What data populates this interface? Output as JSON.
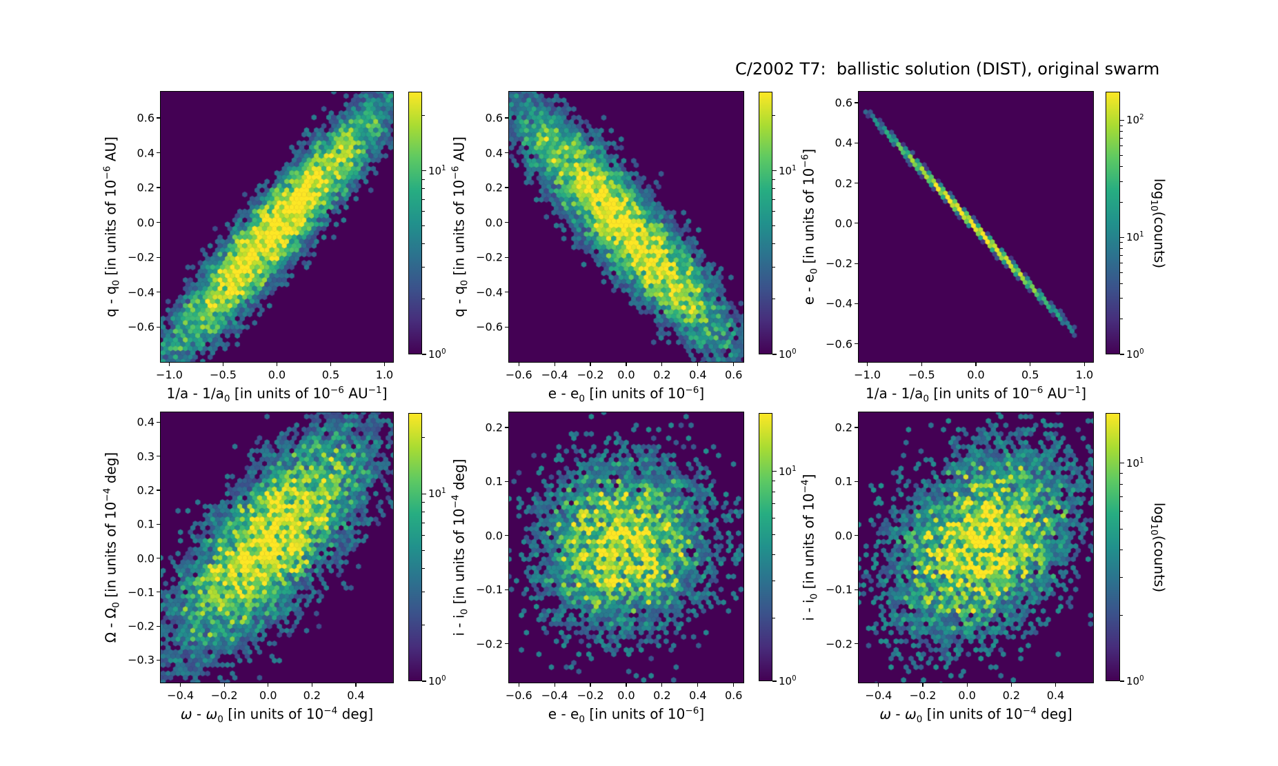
{
  "title": "C/2002 T7:  ballistic solution (DIST), original swarm",
  "colors": {
    "figure_background": "#ffffff",
    "hexbin_background": "#440154",
    "colormap": "viridis",
    "axis_color": "#000000",
    "peak_color": "#fde725"
  },
  "colorbar_label": "log<sub>10</sub>(counts)",
  "chart_data": [
    {
      "type": "hexbin",
      "position": "top-left",
      "xlabel_html": "1/a - 1/a<sub>0</sub> [in units of 10<sup>−6</sup> AU<sup>−1</sup>]",
      "ylabel_html": "q - q<sub>0</sub> [in units of 10<sup>−6</sup> AU]",
      "xlim": [
        -1.08,
        1.08
      ],
      "ylim": [
        -0.8,
        0.75
      ],
      "xticks": [
        {
          "v": -1.0,
          "label": "−1.0"
        },
        {
          "v": -0.5,
          "label": "−0.5"
        },
        {
          "v": 0.0,
          "label": "0.0"
        },
        {
          "v": 0.5,
          "label": "0.5"
        },
        {
          "v": 1.0,
          "label": "1.0"
        }
      ],
      "yticks": [
        {
          "v": 0.6,
          "label": "0.6"
        },
        {
          "v": 0.4,
          "label": "0.4"
        },
        {
          "v": 0.2,
          "label": "0.2"
        },
        {
          "v": 0.0,
          "label": "0.0"
        },
        {
          "v": -0.2,
          "label": "−0.2"
        },
        {
          "v": -0.4,
          "label": "−0.4"
        },
        {
          "v": -0.6,
          "label": "−0.6"
        }
      ],
      "colorbar": {
        "vmax": 27,
        "ticks": [
          {
            "v": 10,
            "label": "10^1"
          },
          {
            "v": 1,
            "label": "10^0"
          }
        ],
        "show_label": false
      },
      "dist": {
        "shape": "gaussian",
        "correlation": "strong positive",
        "cx": 0.5,
        "cy": 0.49,
        "theta_deg": 45,
        "su": 0.33,
        "sv": 0.058,
        "amp": 33,
        "jitter": 1.1,
        "peak_count": 33
      },
      "seed": 101,
      "gridsize": 47
    },
    {
      "type": "hexbin",
      "position": "top-middle",
      "xlabel_html": "e - e<sub>0</sub> [in units of 10<sup>−6</sup>]",
      "ylabel_html": "q - q<sub>0</sub> [in units of 10<sup>−6</sup> AU]",
      "xlim": [
        -0.655,
        0.655
      ],
      "ylim": [
        -0.8,
        0.75
      ],
      "xticks": [
        {
          "v": -0.6,
          "label": "−0.6"
        },
        {
          "v": -0.4,
          "label": "−0.4"
        },
        {
          "v": -0.2,
          "label": "−0.2"
        },
        {
          "v": 0.0,
          "label": "0.0"
        },
        {
          "v": 0.2,
          "label": "0.2"
        },
        {
          "v": 0.4,
          "label": "0.4"
        },
        {
          "v": 0.6,
          "label": "0.6"
        }
      ],
      "yticks": [
        {
          "v": 0.6,
          "label": "0.6"
        },
        {
          "v": 0.4,
          "label": "0.4"
        },
        {
          "v": 0.2,
          "label": "0.2"
        },
        {
          "v": 0.0,
          "label": "0.0"
        },
        {
          "v": -0.2,
          "label": "−0.2"
        },
        {
          "v": -0.4,
          "label": "−0.4"
        },
        {
          "v": -0.6,
          "label": "−0.6"
        }
      ],
      "colorbar": {
        "vmax": 27,
        "ticks": [
          {
            "v": 10,
            "label": "10^1"
          },
          {
            "v": 1,
            "label": "10^0"
          }
        ],
        "show_label": false
      },
      "dist": {
        "shape": "gaussian",
        "correlation": "strong negative",
        "cx": 0.49,
        "cy": 0.5,
        "theta_deg": -45,
        "su": 0.31,
        "sv": 0.068,
        "amp": 30,
        "jitter": 1.15,
        "peak_count": 30
      },
      "seed": 202,
      "gridsize": 47
    },
    {
      "type": "hexbin",
      "position": "top-right",
      "xlabel_html": "1/a - 1/a<sub>0</sub> [in units of 10<sup>−6</sup> AU<sup>−1</sup>]",
      "ylabel_html": "e - e<sub>0</sub> [in units of 10<sup>−6</sup>]",
      "xlim": [
        -1.08,
        1.08
      ],
      "ylim": [
        -0.69,
        0.655
      ],
      "xticks": [
        {
          "v": -1.0,
          "label": "−1.0"
        },
        {
          "v": -0.5,
          "label": "−0.5"
        },
        {
          "v": 0.0,
          "label": "0.0"
        },
        {
          "v": 0.5,
          "label": "0.5"
        },
        {
          "v": 1.0,
          "label": "1.0"
        }
      ],
      "yticks": [
        {
          "v": 0.6,
          "label": "0.6"
        },
        {
          "v": 0.4,
          "label": "0.4"
        },
        {
          "v": 0.2,
          "label": "0.2"
        },
        {
          "v": 0.0,
          "label": "0.0"
        },
        {
          "v": -0.2,
          "label": "−0.2"
        },
        {
          "v": -0.4,
          "label": "−0.4"
        },
        {
          "v": -0.6,
          "label": "−0.6"
        }
      ],
      "colorbar": {
        "vmax": 175,
        "ticks": [
          {
            "v": 100,
            "label": "10^2"
          },
          {
            "v": 10,
            "label": "10^1"
          },
          {
            "v": 1,
            "label": "10^0"
          }
        ],
        "show_label": true
      },
      "dist": {
        "shape": "line",
        "correlation": "perfect negative (tight linear anti-correlation, e-e0 ≈ -0.57 (1/a-1/a0))",
        "cx": 0.48,
        "cy": 0.515,
        "theta_deg": -42.8,
        "su": 0.23,
        "sv": 0.006,
        "amp": 230,
        "jitter": 0.35,
        "halflen": 0.615,
        "peak_count": 230
      },
      "seed": 303,
      "gridsize": 50
    },
    {
      "type": "hexbin",
      "position": "bottom-left",
      "xlabel_html": "<i>ω</i> - <i>ω</i><sub>0</sub> [in units of 10<sup>−4</sup> deg]",
      "ylabel_html": "Ω - Ω<sub>0</sub> [in units of 10<sup>−4</sup> deg]",
      "xlim": [
        -0.49,
        0.57
      ],
      "ylim": [
        -0.366,
        0.429
      ],
      "xticks": [
        {
          "v": -0.4,
          "label": "−0.4"
        },
        {
          "v": -0.2,
          "label": "−0.2"
        },
        {
          "v": 0.0,
          "label": "0.0"
        },
        {
          "v": 0.2,
          "label": "0.2"
        },
        {
          "v": 0.4,
          "label": "0.4"
        }
      ],
      "yticks": [
        {
          "v": 0.4,
          "label": "0.4"
        },
        {
          "v": 0.3,
          "label": "0.3"
        },
        {
          "v": 0.2,
          "label": "0.2"
        },
        {
          "v": 0.1,
          "label": "0.1"
        },
        {
          "v": 0.0,
          "label": "0.0"
        },
        {
          "v": -0.1,
          "label": "−0.1"
        },
        {
          "v": -0.2,
          "label": "−0.2"
        },
        {
          "v": -0.3,
          "label": "−0.3"
        }
      ],
      "colorbar": {
        "vmax": 27,
        "ticks": [
          {
            "v": 10,
            "label": "10^1"
          },
          {
            "v": 1,
            "label": "10^0"
          }
        ],
        "show_label": false
      },
      "dist": {
        "shape": "gaussian",
        "correlation": "positive",
        "cx": 0.47,
        "cy": 0.52,
        "theta_deg": 45,
        "su": 0.27,
        "sv": 0.105,
        "amp": 24,
        "jitter": 1.35,
        "peak_count": 24
      },
      "seed": 404,
      "gridsize": 47
    },
    {
      "type": "hexbin",
      "position": "bottom-middle",
      "xlabel_html": "e - e<sub>0</sub> [in units of 10<sup>−6</sup>]",
      "ylabel_html": "i - i<sub>0</sub> [in units of 10<sup>−4</sup> deg]",
      "xlim": [
        -0.655,
        0.655
      ],
      "ylim": [
        -0.272,
        0.228
      ],
      "xticks": [
        {
          "v": -0.6,
          "label": "−0.6"
        },
        {
          "v": -0.4,
          "label": "−0.4"
        },
        {
          "v": -0.2,
          "label": "−0.2"
        },
        {
          "v": 0.0,
          "label": "0.0"
        },
        {
          "v": 0.2,
          "label": "0.2"
        },
        {
          "v": 0.4,
          "label": "0.4"
        },
        {
          "v": 0.6,
          "label": "0.6"
        }
      ],
      "yticks": [
        {
          "v": 0.2,
          "label": "0.2"
        },
        {
          "v": 0.1,
          "label": "0.1"
        },
        {
          "v": 0.0,
          "label": "0.0"
        },
        {
          "v": -0.1,
          "label": "−0.1"
        },
        {
          "v": -0.2,
          "label": "−0.2"
        }
      ],
      "colorbar": {
        "vmax": 19,
        "ticks": [
          {
            "v": 10,
            "label": "10^1"
          },
          {
            "v": 1,
            "label": "10^0"
          }
        ],
        "show_label": false
      },
      "dist": {
        "shape": "gaussian",
        "correlation": "none (round cloud)",
        "cx": 0.49,
        "cy": 0.51,
        "theta_deg": 10,
        "su": 0.175,
        "sv": 0.155,
        "amp": 15,
        "jitter": 1.45,
        "peak_count": 15
      },
      "seed": 505,
      "gridsize": 47
    },
    {
      "type": "hexbin",
      "position": "bottom-right",
      "xlabel_html": "<i>ω</i> - <i>ω</i><sub>0</sub> [in units of 10<sup>−4</sup> deg]",
      "ylabel_html": "i - i<sub>0</sub> [in units of 10<sup>−4</sup>]",
      "xlim": [
        -0.49,
        0.57
      ],
      "ylim": [
        -0.272,
        0.228
      ],
      "xticks": [
        {
          "v": -0.4,
          "label": "−0.4"
        },
        {
          "v": -0.2,
          "label": "−0.2"
        },
        {
          "v": 0.0,
          "label": "0.0"
        },
        {
          "v": 0.2,
          "label": "0.2"
        },
        {
          "v": 0.4,
          "label": "0.4"
        }
      ],
      "yticks": [
        {
          "v": 0.2,
          "label": "0.2"
        },
        {
          "v": 0.1,
          "label": "0.1"
        },
        {
          "v": 0.0,
          "label": "0.0"
        },
        {
          "v": -0.1,
          "label": "−0.1"
        },
        {
          "v": -0.2,
          "label": "−0.2"
        }
      ],
      "colorbar": {
        "vmax": 17,
        "ticks": [
          {
            "v": 10,
            "label": "10^1"
          },
          {
            "v": 1,
            "label": "10^0"
          }
        ],
        "show_label": true
      },
      "dist": {
        "shape": "gaussian",
        "correlation": "weak positive",
        "cx": 0.53,
        "cy": 0.52,
        "theta_deg": 38,
        "su": 0.21,
        "sv": 0.15,
        "amp": 15,
        "jitter": 1.45,
        "peak_count": 15
      },
      "seed": 606,
      "gridsize": 47
    }
  ]
}
